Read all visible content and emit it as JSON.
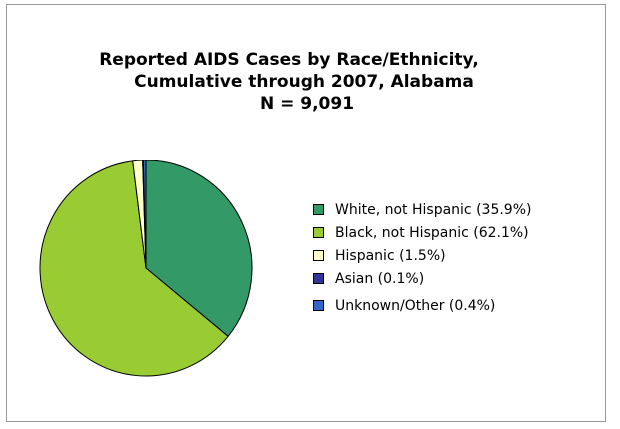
{
  "chart_data": {
    "type": "pie",
    "title": "Reported AIDS Cases by Race/Ethnicity,",
    "subtitle": "Cumulative through 2007, Alabama",
    "note": "N = 9,091",
    "series": [
      {
        "name": "White, not Hispanic (35.9%)",
        "value": 35.9,
        "color": "#339966"
      },
      {
        "name": "Black, not Hispanic (62.1%)",
        "value": 62.1,
        "color": "#99cc33"
      },
      {
        "name": "Hispanic (1.5%)",
        "value": 1.5,
        "color": "#ffffcc"
      },
      {
        "name": "Asian (0.1%)",
        "value": 0.1,
        "color": "#333399"
      },
      {
        "name": "Unknown/Other (0.4%)",
        "value": 0.4,
        "color": "#3366cc"
      }
    ],
    "legend_position": "right"
  }
}
